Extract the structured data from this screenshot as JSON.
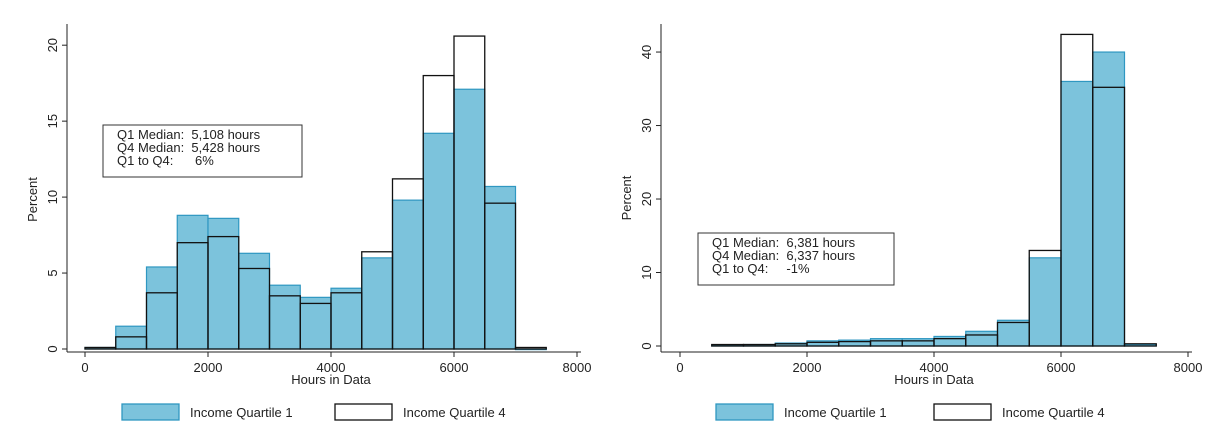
{
  "chart_data": [
    {
      "type": "bar",
      "subtype": "overlaid-histogram",
      "xlabel": "Hours in Data",
      "ylabel": "Percent",
      "xlim": [
        0,
        8000
      ],
      "ylim": [
        0,
        21
      ],
      "xticks": [
        0,
        2000,
        4000,
        6000,
        8000
      ],
      "yticks": [
        0,
        5,
        10,
        15,
        20
      ],
      "bin_width": 500,
      "bin_starts": [
        0,
        500,
        1000,
        1500,
        2000,
        2500,
        3000,
        3500,
        4000,
        4500,
        5000,
        5500,
        6000,
        6500,
        7000
      ],
      "series": [
        {
          "name": "Income Quartile 1",
          "values": [
            0.1,
            1.5,
            5.4,
            8.8,
            8.6,
            6.3,
            4.2,
            3.4,
            4.0,
            6.0,
            9.8,
            14.2,
            17.1,
            10.7,
            0.0
          ],
          "fill": "#7cc3dc",
          "stroke": "#2f97c1"
        },
        {
          "name": "Income Quartile 4",
          "values": [
            0.1,
            0.8,
            3.7,
            7.0,
            7.4,
            5.3,
            3.5,
            3.0,
            3.7,
            6.4,
            11.2,
            18.0,
            20.6,
            9.6,
            0.1
          ],
          "fill": "none",
          "stroke": "#111111"
        }
      ],
      "annotation": [
        "Q1 Median:  5,108 hours",
        "Q4 Median:  5,428 hours",
        "Q1 to Q4:      6%"
      ],
      "legend_position": "bottom"
    },
    {
      "type": "bar",
      "subtype": "overlaid-histogram",
      "xlabel": "Hours in Data",
      "ylabel": "Percent",
      "xlim": [
        0,
        8000
      ],
      "ylim": [
        0,
        43
      ],
      "xticks": [
        0,
        2000,
        4000,
        6000,
        8000
      ],
      "yticks": [
        0,
        10,
        20,
        30,
        40
      ],
      "bin_width": 500,
      "bin_starts": [
        500,
        1000,
        1500,
        2000,
        2500,
        3000,
        3500,
        4000,
        4500,
        5000,
        5500,
        6000,
        6500,
        7000
      ],
      "series": [
        {
          "name": "Income Quartile 1",
          "values": [
            0.1,
            0.2,
            0.4,
            0.7,
            0.8,
            1.0,
            1.0,
            1.3,
            2.0,
            3.5,
            12.0,
            36.0,
            40.0,
            0.2
          ],
          "fill": "#7cc3dc",
          "stroke": "#2f97c1"
        },
        {
          "name": "Income Quartile 4",
          "values": [
            0.2,
            0.2,
            0.3,
            0.5,
            0.6,
            0.7,
            0.7,
            1.0,
            1.5,
            3.2,
            13.0,
            42.4,
            35.2,
            0.3
          ],
          "fill": "none",
          "stroke": "#111111"
        }
      ],
      "annotation": [
        "Q1 Median:  6,381 hours",
        "Q4 Median:  6,337 hours",
        "Q1 to Q4:     -1%"
      ],
      "legend_position": "bottom"
    }
  ]
}
